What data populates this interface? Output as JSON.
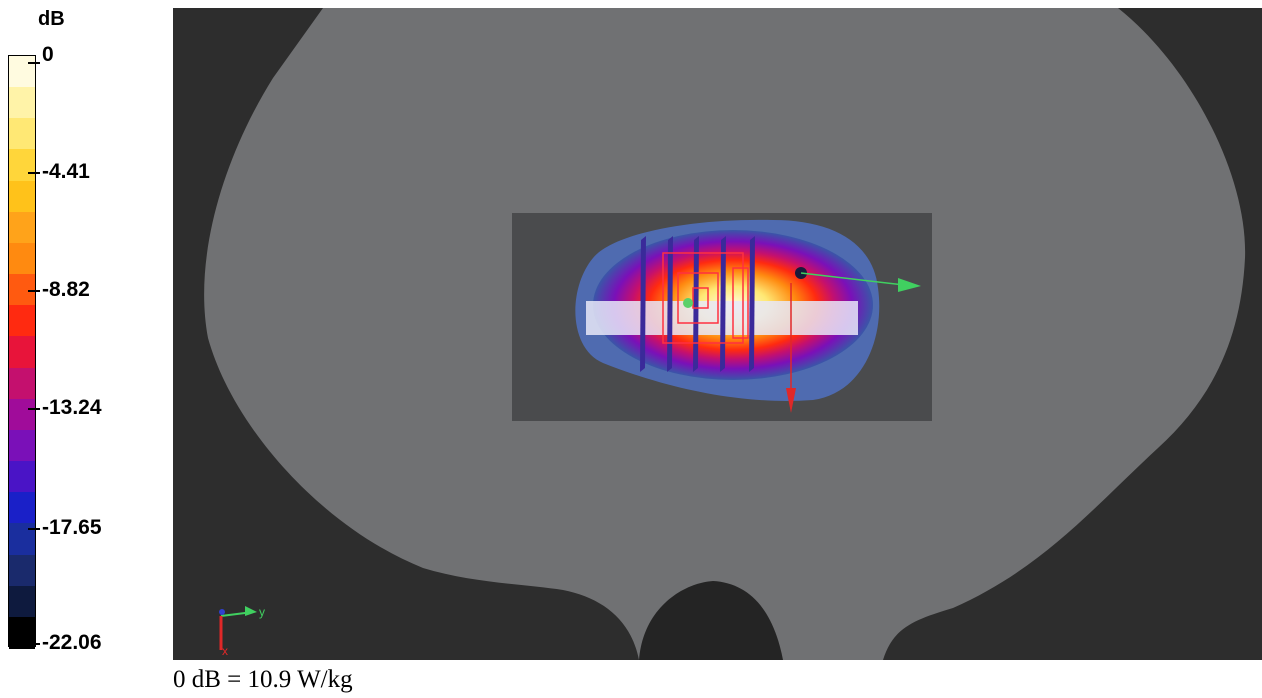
{
  "legend": {
    "unit": "dB",
    "ticks": [
      "0",
      "-4.41",
      "-8.82",
      "-13.24",
      "-17.65",
      "-22.06"
    ],
    "colors": [
      "#fffbe0",
      "#fff3a8",
      "#ffe874",
      "#ffd63a",
      "#ffc21a",
      "#ffa31a",
      "#ff8a10",
      "#ff5a10",
      "#ff2a10",
      "#e8143a",
      "#c4106e",
      "#a00c9a",
      "#7a10b8",
      "#4a14c6",
      "#1a20c8",
      "#1a2e9e",
      "#1a2a6c",
      "#0e1a3e",
      "#000000"
    ]
  },
  "viewport": {
    "axes": {
      "y_label": "y",
      "z_label": "x"
    }
  },
  "caption": "0 dB = 10.9 W/kg"
}
